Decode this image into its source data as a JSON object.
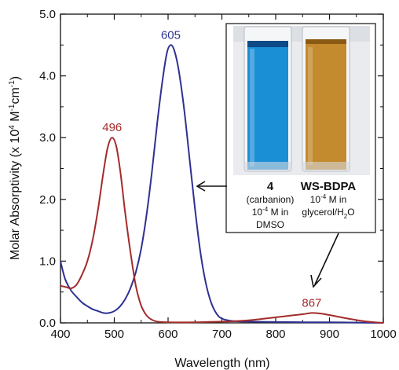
{
  "chart_data": {
    "type": "line",
    "xlabel": "Wavelength (nm)",
    "ylabel_parts": [
      "Molar Absorptivity (x 10",
      "4",
      " M",
      "-1",
      "cm",
      "-1",
      ")"
    ],
    "xlim": [
      400,
      1000
    ],
    "ylim": [
      0.0,
      5.0
    ],
    "xticks": [
      400,
      500,
      600,
      700,
      800,
      900,
      1000
    ],
    "yticks": [
      "0.0",
      "1.0",
      "2.0",
      "3.0",
      "4.0",
      "5.0"
    ],
    "grid": false,
    "series": [
      {
        "color": "#2e3192",
        "points": [
          [
            400,
            1.0
          ],
          [
            405,
            0.82
          ],
          [
            410,
            0.68
          ],
          [
            420,
            0.52
          ],
          [
            430,
            0.42
          ],
          [
            440,
            0.33
          ],
          [
            450,
            0.27
          ],
          [
            460,
            0.22
          ],
          [
            470,
            0.19
          ],
          [
            480,
            0.16
          ],
          [
            490,
            0.16
          ],
          [
            500,
            0.19
          ],
          [
            510,
            0.26
          ],
          [
            520,
            0.38
          ],
          [
            530,
            0.56
          ],
          [
            540,
            0.82
          ],
          [
            550,
            1.2
          ],
          [
            560,
            1.75
          ],
          [
            570,
            2.45
          ],
          [
            580,
            3.25
          ],
          [
            590,
            3.95
          ],
          [
            598,
            4.38
          ],
          [
            605,
            4.5
          ],
          [
            612,
            4.4
          ],
          [
            620,
            4.08
          ],
          [
            630,
            3.45
          ],
          [
            640,
            2.65
          ],
          [
            650,
            1.85
          ],
          [
            660,
            1.15
          ],
          [
            670,
            0.65
          ],
          [
            680,
            0.33
          ],
          [
            690,
            0.15
          ],
          [
            700,
            0.07
          ],
          [
            720,
            0.03
          ],
          [
            750,
            0.02
          ],
          [
            800,
            0.015
          ],
          [
            850,
            0.01
          ],
          [
            900,
            0.01
          ],
          [
            950,
            0.005
          ],
          [
            1000,
            0.0
          ]
        ]
      },
      {
        "color": "#a32b2b",
        "points": [
          [
            400,
            0.6
          ],
          [
            410,
            0.58
          ],
          [
            420,
            0.56
          ],
          [
            430,
            0.62
          ],
          [
            440,
            0.78
          ],
          [
            450,
            1.0
          ],
          [
            460,
            1.35
          ],
          [
            470,
            1.85
          ],
          [
            480,
            2.45
          ],
          [
            488,
            2.85
          ],
          [
            496,
            3.0
          ],
          [
            504,
            2.85
          ],
          [
            512,
            2.4
          ],
          [
            520,
            1.8
          ],
          [
            530,
            1.15
          ],
          [
            540,
            0.6
          ],
          [
            550,
            0.28
          ],
          [
            560,
            0.12
          ],
          [
            570,
            0.05
          ],
          [
            580,
            0.02
          ],
          [
            600,
            0.01
          ],
          [
            650,
            0.01
          ],
          [
            700,
            0.02
          ],
          [
            730,
            0.03
          ],
          [
            760,
            0.05
          ],
          [
            790,
            0.08
          ],
          [
            820,
            0.11
          ],
          [
            850,
            0.14
          ],
          [
            867,
            0.16
          ],
          [
            885,
            0.15
          ],
          [
            910,
            0.11
          ],
          [
            940,
            0.06
          ],
          [
            970,
            0.02
          ],
          [
            1000,
            0.0
          ]
        ]
      }
    ],
    "annotations": [
      {
        "text": "605",
        "x": 605,
        "y": 4.5,
        "color": "#2e3192"
      },
      {
        "text": "496",
        "x": 496,
        "y": 3.0,
        "color": "#a32b2b"
      },
      {
        "text": "867",
        "x": 867,
        "y": 0.16,
        "color": "#a32b2b"
      }
    ]
  },
  "inset": {
    "left_sample": {
      "title": "4",
      "line1": "(carbanion)",
      "conc_prefix": "10",
      "conc_exp": "-4",
      "conc_suffix": " M in",
      "solvent": "DMSO",
      "vial_color": "#1a8fd6"
    },
    "right_sample": {
      "title": "WS-BDPA",
      "conc_prefix": "10",
      "conc_exp": "-4",
      "conc_suffix": " M in",
      "solvent_prefix": "glycerol/H",
      "solvent_sub": "2",
      "solvent_suffix": "O",
      "vial_color": "#c48a2e"
    }
  }
}
